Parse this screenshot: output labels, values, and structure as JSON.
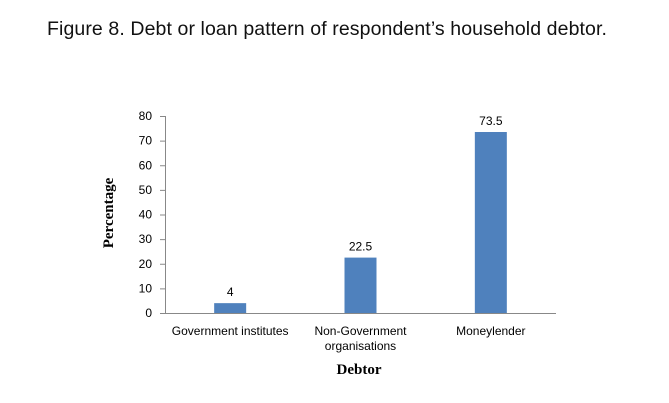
{
  "caption": {
    "label": "Figure 8.",
    "text": "Debt or loan pattern of respondent’s household debtor."
  },
  "chart_data": {
    "type": "bar",
    "title": "",
    "xlabel": "Debtor",
    "ylabel": "Percentage",
    "categories": [
      [
        "Government institutes"
      ],
      [
        "Non-Government",
        "organisations"
      ],
      [
        "Moneylender"
      ]
    ],
    "values": [
      4,
      22.5,
      73.5
    ],
    "data_labels": [
      "4",
      "22.5",
      "73.5"
    ],
    "ylim": [
      0,
      80
    ],
    "yticks": [
      0,
      10,
      20,
      30,
      40,
      50,
      60,
      70,
      80
    ],
    "grid": false,
    "legend": "none",
    "bar_color": "#4f81bd"
  }
}
